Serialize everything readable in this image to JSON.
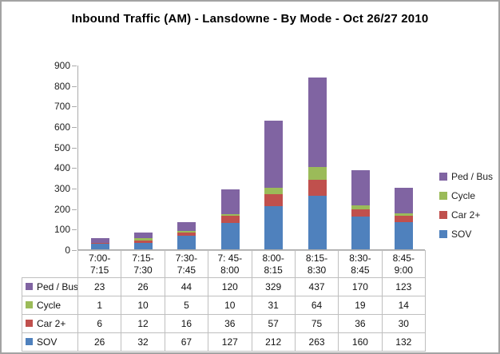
{
  "chart_data": {
    "type": "bar",
    "stacked": true,
    "title": "Inbound Traffic (AM) - Lansdowne - By Mode - Oct 26/27 2010",
    "xlabel": "",
    "ylabel": "",
    "categories": [
      "7:00-7:15",
      "7:15-7:30",
      "7:30-7:45",
      "7: 45-8:00",
      "8:00-8:15",
      "8:15-8:30",
      "8:30-8:45",
      "8:45-9:00"
    ],
    "category_lines": [
      [
        "7:00-",
        "7:15"
      ],
      [
        "7:15-",
        "7:30"
      ],
      [
        "7:30-",
        "7:45"
      ],
      [
        "7: 45-",
        "8:00"
      ],
      [
        "8:00-",
        "8:15"
      ],
      [
        "8:15-",
        "8:30"
      ],
      [
        "8:30-",
        "8:45"
      ],
      [
        "8:45-",
        "9:00"
      ]
    ],
    "series": [
      {
        "name": "SOV",
        "color": "#4F81BD",
        "values": [
          26,
          32,
          67,
          127,
          212,
          263,
          160,
          132
        ]
      },
      {
        "name": "Car 2+",
        "color": "#C0504D",
        "values": [
          6,
          12,
          16,
          36,
          57,
          75,
          36,
          30
        ]
      },
      {
        "name": "Cycle",
        "color": "#9BBB59",
        "values": [
          1,
          10,
          5,
          10,
          31,
          64,
          19,
          14
        ]
      },
      {
        "name": "Ped / Bus",
        "color": "#8064A2",
        "values": [
          23,
          26,
          44,
          120,
          329,
          437,
          170,
          123
        ]
      }
    ],
    "stack_order_bottom_to_top": [
      "SOV",
      "Car 2+",
      "Cycle",
      "Ped / Bus"
    ],
    "legend_order": [
      "Ped / Bus",
      "Cycle",
      "Car 2+",
      "SOV"
    ],
    "legend_position": "right",
    "yticks": [
      0,
      100,
      200,
      300,
      400,
      500,
      600,
      700,
      800,
      900
    ],
    "ylim": [
      0,
      900
    ],
    "grid": false,
    "data_table_shown": true,
    "axis_color": "#ababab",
    "table_border_color": "#bfbfbf"
  }
}
